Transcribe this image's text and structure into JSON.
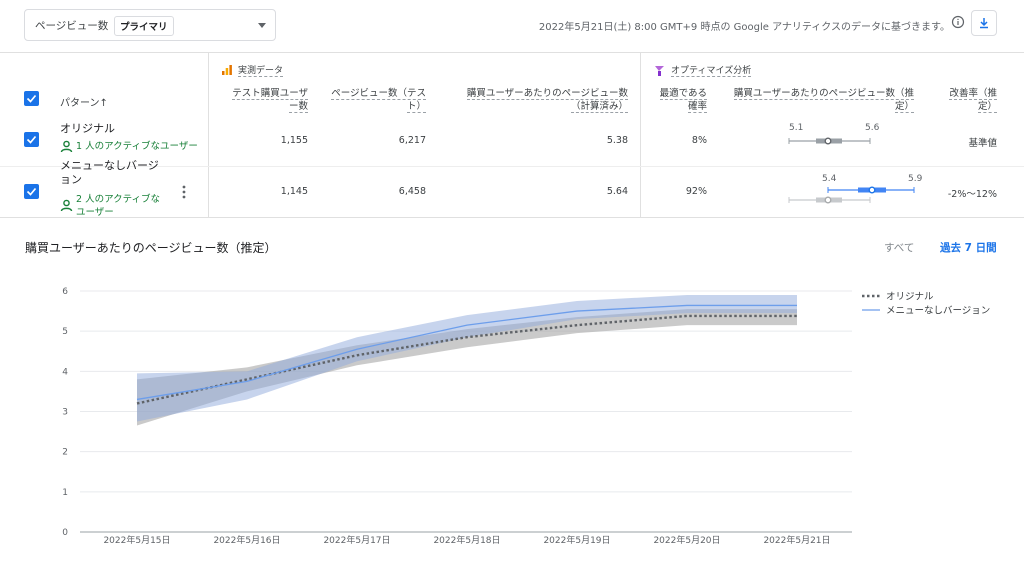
{
  "metric_select": {
    "label": "ページビュー数",
    "badge": "プライマリ"
  },
  "basis_text": "2022年5月21日(土) 8:00 GMT+9 時点の Google アナリティクスのデータに基づきます。",
  "sections": {
    "observed": "実測データ",
    "optimize": "オプティマイズ分析"
  },
  "columns": {
    "pattern": "パターン",
    "test_users": [
      "テスト購買ユーザ",
      "ー数"
    ],
    "pageviews": [
      "ページビュー数（テス",
      "ト）"
    ],
    "pv_per_user": [
      "購買ユーザーあたりのページビュー数",
      "（計算済み）"
    ],
    "best_prob": [
      "最適である",
      "確率"
    ],
    "pv_est": [
      "購買ユーザーあたりのページビュー数（推",
      "定）"
    ],
    "improve": [
      "改善率（推",
      "定）"
    ]
  },
  "rows": [
    {
      "name": [
        "オリジナル"
      ],
      "users": [
        "1 人のアクティブなユーザー"
      ],
      "test_users": "1,155",
      "pageviews": "6,217",
      "pv_per_user": "5.38",
      "best_prob": "8%",
      "ci_low": "5.1",
      "ci_high": "5.6",
      "improve": "基準値"
    },
    {
      "name": [
        "メニューなしバージ",
        "ョン"
      ],
      "users": [
        "2 人のアクティブな",
        "ユーザー"
      ],
      "test_users": "1,145",
      "pageviews": "6,458",
      "pv_per_user": "5.64",
      "best_prob": "92%",
      "ci_low": "5.4",
      "ci_high": "5.9",
      "improve": "-2%～12%"
    }
  ],
  "chart": {
    "title": "購買ユーザーあたりのページビュー数（推定）",
    "range_all": "すべて",
    "range_7": "過去 7 日間"
  },
  "chart_data": {
    "type": "line",
    "x": [
      "2022年5月15日",
      "2022年5月16日",
      "2022年5月17日",
      "2022年5月18日",
      "2022年5月19日",
      "2022年5月20日",
      "2022年5月21日"
    ],
    "ylim": [
      0,
      6
    ],
    "yticks": [
      "0",
      "1",
      "2",
      "3",
      "4",
      "5",
      "6"
    ],
    "grid": true,
    "legend_position": "top-right",
    "series": [
      {
        "name": "オリジナル",
        "style": "dotted",
        "color": "#5f6368",
        "band_color": "#9e9e9e",
        "values": [
          3.2,
          3.8,
          4.4,
          4.85,
          5.15,
          5.38,
          5.38
        ],
        "lower": [
          2.65,
          3.5,
          4.15,
          4.6,
          4.95,
          5.15,
          5.15
        ],
        "upper": [
          3.8,
          4.1,
          4.65,
          5.05,
          5.35,
          5.55,
          5.55
        ]
      },
      {
        "name": "メニューなしバージョン",
        "style": "solid",
        "color": "#6d9eeb",
        "band_color": "#8faadc",
        "values": [
          3.3,
          3.75,
          4.55,
          5.15,
          5.5,
          5.64,
          5.64
        ],
        "lower": [
          2.75,
          3.3,
          4.25,
          4.85,
          5.3,
          5.45,
          5.45
        ],
        "upper": [
          3.95,
          4.0,
          4.85,
          5.4,
          5.75,
          5.9,
          5.9
        ]
      }
    ]
  }
}
